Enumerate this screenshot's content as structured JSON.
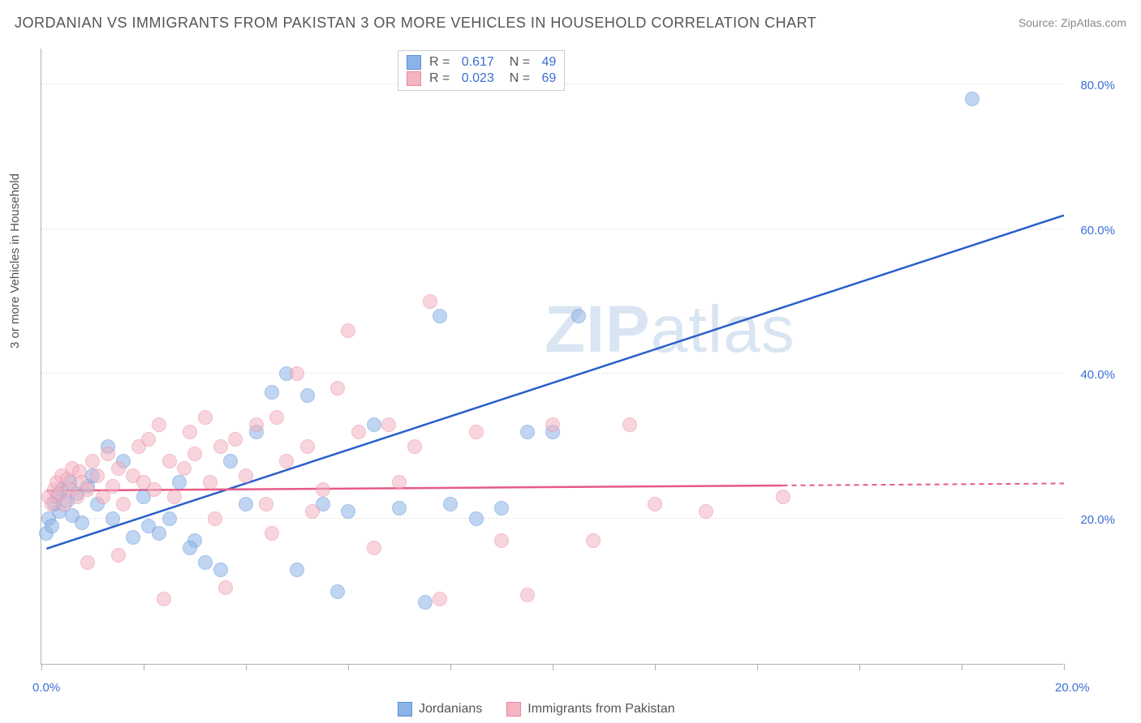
{
  "title": "JORDANIAN VS IMMIGRANTS FROM PAKISTAN 3 OR MORE VEHICLES IN HOUSEHOLD CORRELATION CHART",
  "source": "Source: ZipAtlas.com",
  "ylabel": "3 or more Vehicles in Household",
  "watermark_bold": "ZIP",
  "watermark_light": "atlas",
  "chart": {
    "type": "scatter",
    "xlim": [
      0,
      20
    ],
    "ylim": [
      0,
      85
    ],
    "x_ticks": [
      0,
      2,
      4,
      6,
      8,
      10,
      12,
      14,
      16,
      18,
      20
    ],
    "x_labels_shown": {
      "0": "0.0%",
      "20": "20.0%"
    },
    "y_gridlines": [
      20,
      40,
      60,
      80
    ],
    "y_labels": {
      "20": "20.0%",
      "40": "40.0%",
      "60": "60.0%",
      "80": "80.0%"
    },
    "background_color": "#ffffff",
    "grid_color": "#e8e8e8",
    "axis_color": "#b0b0b0",
    "marker_radius": 9,
    "marker_opacity": 0.55,
    "series": [
      {
        "name": "Jordanians",
        "color": "#8bb3e8",
        "border": "#5a8fd6",
        "line_color": "#2a5fc9",
        "r": "0.617",
        "n": "49",
        "trend_start": [
          0.1,
          16
        ],
        "trend_end": [
          20,
          62
        ],
        "trend_solid_to_x": 20,
        "points": [
          [
            0.1,
            18
          ],
          [
            0.15,
            20
          ],
          [
            0.2,
            19
          ],
          [
            0.25,
            22
          ],
          [
            0.3,
            23
          ],
          [
            0.35,
            21
          ],
          [
            0.4,
            24
          ],
          [
            0.5,
            22.5
          ],
          [
            0.55,
            25
          ],
          [
            0.6,
            20.5
          ],
          [
            0.7,
            23.5
          ],
          [
            0.8,
            19.5
          ],
          [
            0.9,
            24.5
          ],
          [
            1.0,
            26
          ],
          [
            1.1,
            22
          ],
          [
            1.3,
            30
          ],
          [
            1.4,
            20
          ],
          [
            1.6,
            28
          ],
          [
            1.8,
            17.5
          ],
          [
            2.0,
            23
          ],
          [
            2.1,
            19
          ],
          [
            2.3,
            18
          ],
          [
            2.5,
            20
          ],
          [
            2.7,
            25
          ],
          [
            3.0,
            17
          ],
          [
            3.2,
            14
          ],
          [
            3.5,
            13
          ],
          [
            3.7,
            28
          ],
          [
            4.0,
            22
          ],
          [
            4.5,
            37.5
          ],
          [
            4.8,
            40
          ],
          [
            5.0,
            13
          ],
          [
            5.2,
            37
          ],
          [
            5.5,
            22
          ],
          [
            5.8,
            10
          ],
          [
            6.0,
            21
          ],
          [
            6.5,
            33
          ],
          [
            7.0,
            21.5
          ],
          [
            7.5,
            8.5
          ],
          [
            7.8,
            48
          ],
          [
            8.0,
            22
          ],
          [
            8.5,
            20
          ],
          [
            9.0,
            21.5
          ],
          [
            9.5,
            32
          ],
          [
            10.0,
            32
          ],
          [
            10.5,
            48
          ],
          [
            18.2,
            78
          ],
          [
            2.9,
            16
          ],
          [
            4.2,
            32
          ]
        ]
      },
      {
        "name": "Immigrants from Pakistan",
        "color": "#f4b4c2",
        "border": "#e888a0",
        "line_color": "#e75a86",
        "r": "0.023",
        "n": "69",
        "trend_start": [
          0.1,
          24
        ],
        "trend_end": [
          20,
          25
        ],
        "trend_solid_to_x": 14.5,
        "points": [
          [
            0.15,
            23
          ],
          [
            0.2,
            22
          ],
          [
            0.25,
            24
          ],
          [
            0.3,
            25
          ],
          [
            0.35,
            23.5
          ],
          [
            0.4,
            26
          ],
          [
            0.45,
            22
          ],
          [
            0.5,
            25.5
          ],
          [
            0.55,
            24
          ],
          [
            0.6,
            27
          ],
          [
            0.7,
            23
          ],
          [
            0.75,
            26.5
          ],
          [
            0.8,
            25
          ],
          [
            0.9,
            24
          ],
          [
            1.0,
            28
          ],
          [
            1.1,
            26
          ],
          [
            1.2,
            23
          ],
          [
            1.3,
            29
          ],
          [
            1.4,
            24.5
          ],
          [
            1.5,
            27
          ],
          [
            1.6,
            22
          ],
          [
            1.8,
            26
          ],
          [
            1.9,
            30
          ],
          [
            2.0,
            25
          ],
          [
            2.1,
            31
          ],
          [
            2.2,
            24
          ],
          [
            2.3,
            33
          ],
          [
            2.5,
            28
          ],
          [
            2.6,
            23
          ],
          [
            2.8,
            27
          ],
          [
            2.9,
            32
          ],
          [
            3.0,
            29
          ],
          [
            3.2,
            34
          ],
          [
            3.3,
            25
          ],
          [
            3.5,
            30
          ],
          [
            3.6,
            10.5
          ],
          [
            3.8,
            31
          ],
          [
            4.0,
            26
          ],
          [
            4.2,
            33
          ],
          [
            4.4,
            22
          ],
          [
            4.6,
            34
          ],
          [
            4.8,
            28
          ],
          [
            5.0,
            40
          ],
          [
            5.2,
            30
          ],
          [
            5.5,
            24
          ],
          [
            5.8,
            38
          ],
          [
            6.0,
            46
          ],
          [
            6.2,
            32
          ],
          [
            6.5,
            16
          ],
          [
            6.8,
            33
          ],
          [
            7.0,
            25
          ],
          [
            7.3,
            30
          ],
          [
            7.6,
            50
          ],
          [
            7.8,
            9
          ],
          [
            8.5,
            32
          ],
          [
            9.0,
            17
          ],
          [
            9.5,
            9.5
          ],
          [
            10.0,
            33
          ],
          [
            10.8,
            17
          ],
          [
            11.5,
            33
          ],
          [
            12.0,
            22
          ],
          [
            13.0,
            21
          ],
          [
            14.5,
            23
          ],
          [
            0.9,
            14
          ],
          [
            2.4,
            9
          ],
          [
            1.5,
            15
          ],
          [
            3.4,
            20
          ],
          [
            4.5,
            18
          ],
          [
            5.3,
            21
          ]
        ]
      }
    ]
  }
}
